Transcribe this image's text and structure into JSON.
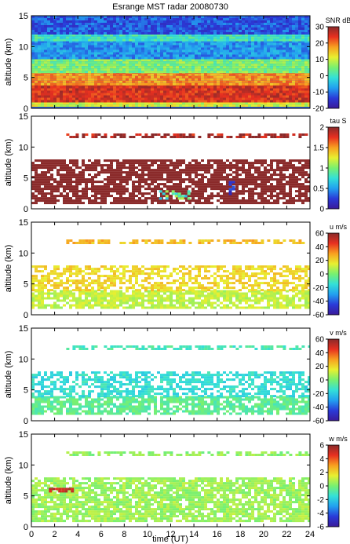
{
  "figure": {
    "title": "Esrange MST radar 20080730",
    "xlabel": "time (UT)"
  },
  "x_ticks": [
    0,
    2,
    4,
    6,
    8,
    10,
    12,
    14,
    16,
    18,
    20,
    22,
    24
  ],
  "y_ticks": [
    0,
    5,
    10,
    15
  ],
  "chart_data": [
    {
      "type": "heatmap",
      "quantity": "SNR",
      "colorbar_label": "SNR dB",
      "ylabel": "altitude (km)",
      "xlim": [
        0,
        24
      ],
      "ylim": [
        0,
        15
      ],
      "clim": [
        -20,
        30
      ],
      "colorbar_ticks": [
        30,
        20,
        10,
        0,
        -10,
        -20
      ],
      "features": [
        {
          "time": [
            0,
            24
          ],
          "altitude": [
            0.5,
            1.0
          ],
          "level": 10
        },
        {
          "time": [
            0,
            24
          ],
          "altitude": [
            1.0,
            4.0
          ],
          "level": 25
        },
        {
          "time": [
            0,
            24
          ],
          "altitude": [
            4.0,
            6.0
          ],
          "level": 18
        },
        {
          "time": [
            0,
            24
          ],
          "altitude": [
            6.0,
            8.0
          ],
          "level": 5
        },
        {
          "time": [
            0,
            24
          ],
          "altitude": [
            8.0,
            11.0
          ],
          "level": -8
        },
        {
          "time": [
            0,
            24
          ],
          "altitude": [
            11.0,
            12.0
          ],
          "level": 0
        },
        {
          "time": [
            0,
            24
          ],
          "altitude": [
            12.0,
            15.0
          ],
          "level": -12
        }
      ]
    },
    {
      "type": "heatmap",
      "quantity": "tau",
      "colorbar_label": "tau S",
      "ylabel": "altitude (km)",
      "xlim": [
        0,
        24
      ],
      "ylim": [
        0,
        15
      ],
      "clim": [
        0,
        2
      ],
      "colorbar_ticks": [
        2,
        1.5,
        1,
        0.5,
        0
      ],
      "features": [
        {
          "time": [
            0,
            24
          ],
          "altitude": [
            1.0,
            8.0
          ],
          "value": 2.0
        },
        {
          "time": [
            3,
            24
          ],
          "altitude": [
            11.5,
            12.2
          ],
          "value": 2.0
        },
        {
          "time": [
            11,
            13.5
          ],
          "altitude": [
            1.5,
            3.0
          ],
          "value": 0.9
        },
        {
          "time": [
            17,
            17.5
          ],
          "altitude": [
            2.5,
            4.5
          ],
          "value": 0.2
        }
      ]
    },
    {
      "type": "heatmap",
      "quantity": "u",
      "colorbar_label": "u m/s",
      "ylabel": "altitude (km)",
      "xlim": [
        0,
        24
      ],
      "ylim": [
        0,
        15
      ],
      "clim": [
        -60,
        60
      ],
      "colorbar_ticks": [
        60,
        40,
        20,
        0,
        -20,
        -40,
        -60
      ],
      "features": [
        {
          "time": [
            0,
            24
          ],
          "altitude": [
            1.0,
            4.0
          ],
          "value": 10
        },
        {
          "time": [
            0,
            24
          ],
          "altitude": [
            4.0,
            8.0
          ],
          "value": 20
        },
        {
          "time": [
            3,
            24
          ],
          "altitude": [
            11.5,
            12.2
          ],
          "value": 25
        }
      ]
    },
    {
      "type": "heatmap",
      "quantity": "v",
      "colorbar_label": "v m/s",
      "ylabel": "altitude (km)",
      "xlim": [
        0,
        24
      ],
      "ylim": [
        0,
        15
      ],
      "clim": [
        -60,
        60
      ],
      "colorbar_ticks": [
        60,
        40,
        20,
        0,
        -20,
        -40,
        -60
      ],
      "features": [
        {
          "time": [
            0,
            24
          ],
          "altitude": [
            1.0,
            4.0
          ],
          "value": -5
        },
        {
          "time": [
            0,
            24
          ],
          "altitude": [
            4.0,
            8.0
          ],
          "value": -15
        },
        {
          "time": [
            3,
            24
          ],
          "altitude": [
            11.5,
            12.2
          ],
          "value": -10
        }
      ]
    },
    {
      "type": "heatmap",
      "quantity": "w",
      "colorbar_label": "w m/s",
      "ylabel": "altitude (km)",
      "xlim": [
        0,
        24
      ],
      "ylim": [
        0,
        15
      ],
      "clim": [
        -6,
        6
      ],
      "colorbar_ticks": [
        6,
        4,
        2,
        0,
        -2,
        -4,
        -6
      ],
      "features": [
        {
          "time": [
            0,
            24
          ],
          "altitude": [
            1.0,
            8.0
          ],
          "value": 0.5
        },
        {
          "time": [
            3,
            24
          ],
          "altitude": [
            11.5,
            12.2
          ],
          "value": 0.3
        },
        {
          "time": [
            1.5,
            3.5
          ],
          "altitude": [
            5.8,
            6.3
          ],
          "value": 5
        }
      ]
    }
  ]
}
